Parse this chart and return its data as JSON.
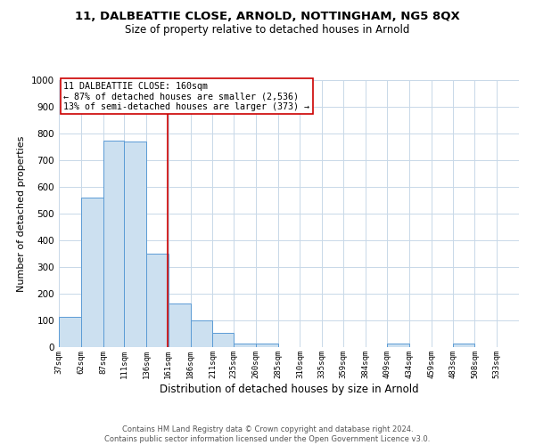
{
  "title": "11, DALBEATTIE CLOSE, ARNOLD, NOTTINGHAM, NG5 8QX",
  "subtitle": "Size of property relative to detached houses in Arnold",
  "xlabel": "Distribution of detached houses by size in Arnold",
  "ylabel": "Number of detached properties",
  "bin_labels": [
    "37sqm",
    "62sqm",
    "87sqm",
    "111sqm",
    "136sqm",
    "161sqm",
    "186sqm",
    "211sqm",
    "235sqm",
    "260sqm",
    "285sqm",
    "310sqm",
    "335sqm",
    "359sqm",
    "384sqm",
    "409sqm",
    "434sqm",
    "459sqm",
    "483sqm",
    "508sqm",
    "533sqm"
  ],
  "bin_edges": [
    37,
    62,
    87,
    111,
    136,
    161,
    186,
    211,
    235,
    260,
    285,
    310,
    335,
    359,
    384,
    409,
    434,
    459,
    483,
    508,
    533,
    558
  ],
  "bar_heights": [
    115,
    560,
    775,
    770,
    350,
    165,
    100,
    55,
    15,
    15,
    0,
    0,
    0,
    0,
    0,
    15,
    0,
    0,
    15,
    0,
    0
  ],
  "bar_fill_color": "#cce0f0",
  "bar_edge_color": "#5b9bd5",
  "ylim": [
    0,
    1000
  ],
  "yticks": [
    0,
    100,
    200,
    300,
    400,
    500,
    600,
    700,
    800,
    900,
    1000
  ],
  "property_line_x": 160,
  "property_line_color": "#cc0000",
  "annotation_box_text": "11 DALBEATTIE CLOSE: 160sqm\n← 87% of detached houses are smaller (2,536)\n13% of semi-detached houses are larger (373) →",
  "annotation_box_color": "#cc0000",
  "footer_line1": "Contains HM Land Registry data © Crown copyright and database right 2024.",
  "footer_line2": "Contains public sector information licensed under the Open Government Licence v3.0.",
  "bg_color": "#ffffff",
  "grid_color": "#c8d8e8",
  "title_fontsize": 9.5,
  "subtitle_fontsize": 8.5,
  "ylabel_fontsize": 8,
  "xlabel_fontsize": 8.5,
  "tick_fontsize": 6.5,
  "ytick_fontsize": 7.5,
  "ann_fontsize": 7.2,
  "footer_fontsize": 6
}
